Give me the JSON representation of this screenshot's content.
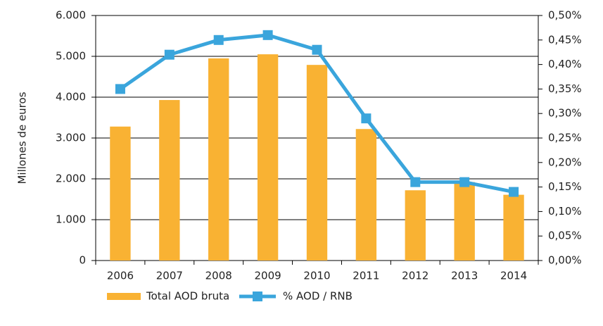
{
  "chart_data": {
    "type": "bar",
    "y_axis_label": "Millones de euros",
    "categories": [
      "2006",
      "2007",
      "2008",
      "2009",
      "2010",
      "2011",
      "2012",
      "2013",
      "2014"
    ],
    "series": [
      {
        "name": "Total AOD bruta",
        "type": "bar",
        "color": "#f9b233",
        "values": [
          3280,
          3930,
          4950,
          5050,
          4790,
          3220,
          1720,
          1920,
          1610
        ]
      },
      {
        "name": "% AOD / RNB",
        "type": "line",
        "axis": "y2",
        "color": "#3aa5dc",
        "values": [
          0.35,
          0.42,
          0.45,
          0.46,
          0.43,
          0.29,
          0.16,
          0.16,
          0.14
        ]
      }
    ],
    "ylim": [
      0,
      6000
    ],
    "yticks": [
      0,
      {
        "value": 1000,
        "label": "1.000"
      },
      {
        "value": 2000,
        "label": "2.000"
      },
      {
        "value": 3000,
        "label": "3.000"
      },
      {
        "value": 4000,
        "label": "4.000"
      },
      {
        "value": 5000,
        "label": "5.000"
      },
      {
        "value": 6000,
        "label": "6.000"
      }
    ],
    "y2lim": [
      0,
      0.5
    ],
    "y2ticks": [
      {
        "value": 0,
        "label": "0,00%"
      },
      {
        "value": 0.05,
        "label": "0,05%"
      },
      {
        "value": 0.1,
        "label": "0,10%"
      },
      {
        "value": 0.15,
        "label": "0,15%"
      },
      {
        "value": 0.2,
        "label": "0,20%"
      },
      {
        "value": 0.25,
        "label": "0,25%"
      },
      {
        "value": 0.3,
        "label": "0,30%"
      },
      {
        "value": 0.35,
        "label": "0,35%"
      },
      {
        "value": 0.4,
        "label": "0,40%"
      },
      {
        "value": 0.45,
        "label": "0,45%"
      },
      {
        "value": 0.5,
        "label": "0,50%"
      }
    ],
    "grid": true
  }
}
